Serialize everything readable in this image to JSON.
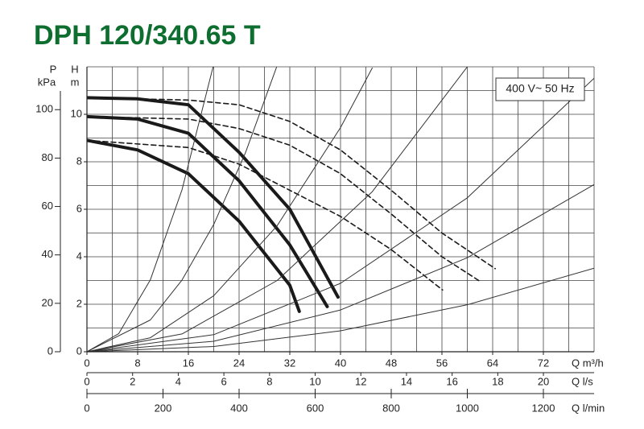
{
  "chart_data": {
    "type": "line",
    "title": "DPH 120/340.65 T",
    "annotation": "400 V~ 50 Hz",
    "y_label": "H",
    "y_unit": "m",
    "y2_label": "P",
    "y2_unit": "kPa",
    "x_label": "Q m³/h",
    "x2_label": "Q l/s",
    "x3_label": "Q l/min",
    "xlim": [
      0,
      80
    ],
    "xticks": [
      0,
      8,
      16,
      24,
      32,
      40,
      48,
      56,
      64,
      72
    ],
    "x2lim": [
      0,
      22.22
    ],
    "x2ticks": [
      0,
      2,
      4,
      6,
      8,
      10,
      12,
      14,
      16,
      18,
      20
    ],
    "x3lim": [
      0,
      1333.3
    ],
    "x3ticks": [
      0,
      200,
      400,
      600,
      800,
      1000,
      1200
    ],
    "ylim": [
      0,
      12
    ],
    "yticks": [
      0,
      2,
      4,
      6,
      8,
      10
    ],
    "y2lim": [
      0,
      117.7
    ],
    "y2ticks": [
      0,
      20,
      40,
      60,
      80,
      100
    ],
    "xgrid": [
      4,
      8,
      12,
      16,
      20,
      24,
      28,
      32,
      36,
      40,
      44,
      48,
      52,
      56,
      60,
      64,
      68,
      72,
      76,
      80
    ],
    "ygrid": [
      1,
      2,
      3,
      4,
      5,
      6,
      7,
      8,
      9,
      10,
      11,
      12
    ],
    "series": [
      {
        "style": "thick",
        "color": "#1a1a1a",
        "x": [
          0,
          8,
          16,
          24,
          32,
          39.6
        ],
        "values": [
          10.7,
          10.65,
          10.4,
          8.4,
          6.0,
          2.3
        ]
      },
      {
        "style": "thick",
        "color": "#1a1a1a",
        "x": [
          0,
          8,
          16,
          24,
          32,
          37.9
        ],
        "values": [
          9.9,
          9.8,
          9.2,
          7.2,
          4.5,
          1.9
        ]
      },
      {
        "style": "thick",
        "color": "#1a1a1a",
        "x": [
          0,
          8,
          16,
          24,
          32,
          33.5
        ],
        "values": [
          8.9,
          8.5,
          7.5,
          5.5,
          2.8,
          1.7
        ]
      },
      {
        "style": "dashed",
        "color": "#1a1a1a",
        "x": [
          0,
          16,
          24,
          32,
          40,
          48,
          56,
          64.4
        ],
        "values": [
          10.7,
          10.6,
          10.4,
          9.7,
          8.5,
          6.8,
          5.0,
          3.5
        ]
      },
      {
        "style": "dashed",
        "color": "#1a1a1a",
        "x": [
          0,
          16,
          24,
          32,
          40,
          48,
          56,
          62.1
        ],
        "values": [
          9.9,
          9.8,
          9.4,
          8.7,
          7.5,
          5.8,
          4.0,
          2.95
        ]
      },
      {
        "style": "dashed",
        "color": "#1a1a1a",
        "x": [
          0,
          16,
          24,
          32,
          40,
          48,
          56.1
        ],
        "values": [
          8.9,
          8.6,
          7.9,
          6.8,
          5.7,
          4.3,
          2.6
        ]
      },
      {
        "style": "thin",
        "color": "#333333",
        "x": [
          0,
          5,
          10,
          15,
          19.9
        ],
        "values": [
          0,
          0.76,
          3.03,
          6.82,
          12.0
        ]
      },
      {
        "style": "thin",
        "color": "#333333",
        "x": [
          0,
          10,
          15,
          20,
          25,
          29.9
        ],
        "values": [
          0,
          1.34,
          3.02,
          5.36,
          8.38,
          11.98
        ]
      },
      {
        "style": "thin",
        "color": "#333333",
        "x": [
          0,
          10,
          20,
          30,
          40,
          45
        ],
        "values": [
          0,
          0.59,
          2.36,
          5.31,
          9.44,
          11.95
        ]
      },
      {
        "style": "thin",
        "color": "#333333",
        "x": [
          0,
          15,
          30,
          45,
          60
        ],
        "values": [
          0,
          0.75,
          3.0,
          6.74,
          12.0
        ]
      },
      {
        "style": "thin",
        "color": "#333333",
        "x": [
          0,
          20,
          40,
          60,
          80
        ],
        "values": [
          0,
          0.72,
          2.88,
          6.48,
          11.52
        ]
      },
      {
        "style": "thin",
        "color": "#333333",
        "x": [
          0,
          20,
          40,
          60,
          80
        ],
        "values": [
          0,
          0.44,
          1.76,
          3.96,
          7.04
        ]
      },
      {
        "style": "thin",
        "color": "#333333",
        "x": [
          0,
          20,
          40,
          60,
          80
        ],
        "values": [
          0,
          0.22,
          0.88,
          1.98,
          3.52
        ]
      }
    ]
  }
}
